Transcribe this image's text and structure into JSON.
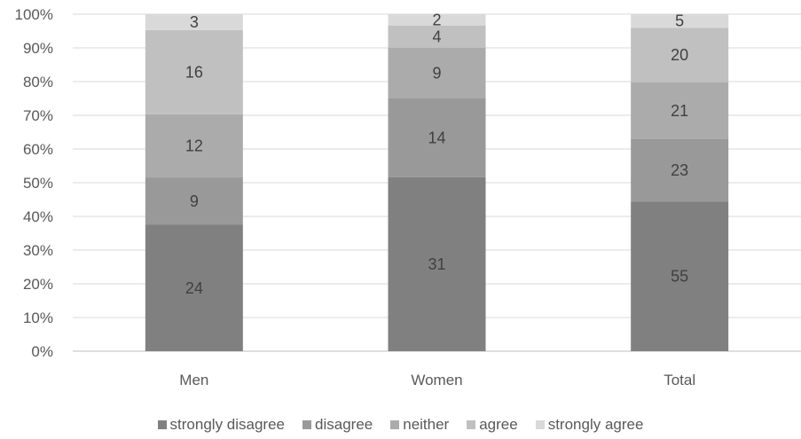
{
  "chart_data": {
    "type": "bar",
    "stacked": true,
    "normalized": true,
    "categories": [
      "Men",
      "Women",
      "Total"
    ],
    "series": [
      {
        "name": "strongly disagree",
        "color": "#808080",
        "values": [
          24,
          31,
          55
        ]
      },
      {
        "name": "disagree",
        "color": "#999999",
        "values": [
          9,
          14,
          23
        ]
      },
      {
        "name": "neither",
        "color": "#ababab",
        "values": [
          12,
          9,
          21
        ]
      },
      {
        "name": "agree",
        "color": "#c0c0c0",
        "values": [
          16,
          4,
          20
        ]
      },
      {
        "name": "strongly agree",
        "color": "#d9d9d9",
        "values": [
          3,
          2,
          5
        ]
      }
    ],
    "yticks": [
      "0%",
      "10%",
      "20%",
      "30%",
      "40%",
      "50%",
      "60%",
      "70%",
      "80%",
      "90%",
      "100%"
    ],
    "ylim": [
      0,
      100
    ],
    "grid": true,
    "legend_position": "bottom",
    "title": "",
    "xlabel": "",
    "ylabel": ""
  }
}
